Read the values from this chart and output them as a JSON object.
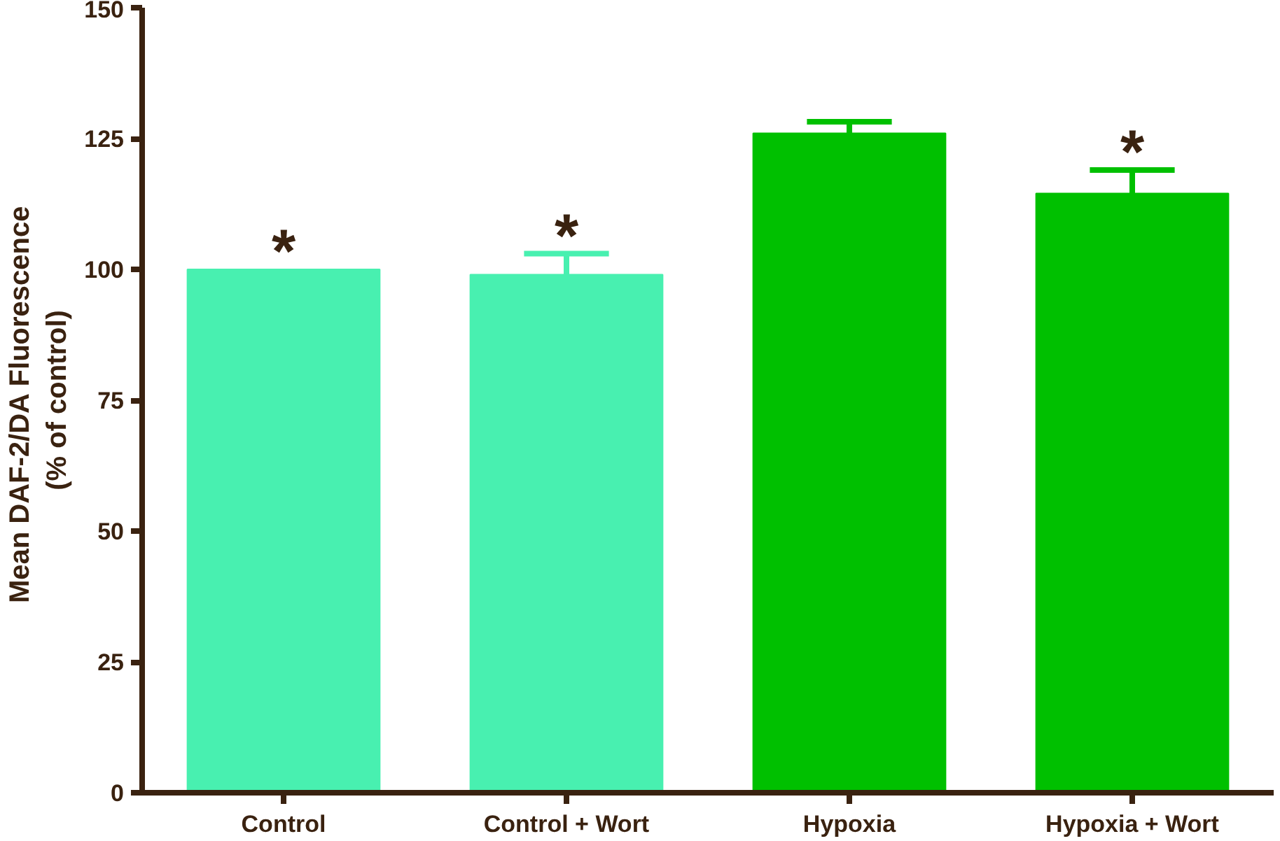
{
  "chart_data": {
    "type": "bar",
    "ylabel": "Mean  DAF-2/DA Fluorescence\n(% of control)",
    "categories": [
      "Control",
      "Control + Wort",
      "Hypoxia",
      "Hypoxia + Wort"
    ],
    "values": [
      100,
      99,
      126,
      114.5
    ],
    "colors": [
      "#48f0b0",
      "#48f0b0",
      "#00c000",
      "#00c000"
    ],
    "errors": [
      null,
      4,
      2.2,
      4.5
    ],
    "ylim": [
      0,
      150
    ],
    "yticks": [
      0,
      25,
      50,
      75,
      100,
      125,
      150
    ],
    "grid": false,
    "annotations": [
      {
        "text": "*",
        "x": "Control",
        "y": 100
      },
      {
        "text": "*",
        "x": "Control + Wort",
        "y": 103
      },
      {
        "text": "*",
        "x": "Hypoxia + Wort",
        "y": 119
      }
    ]
  }
}
